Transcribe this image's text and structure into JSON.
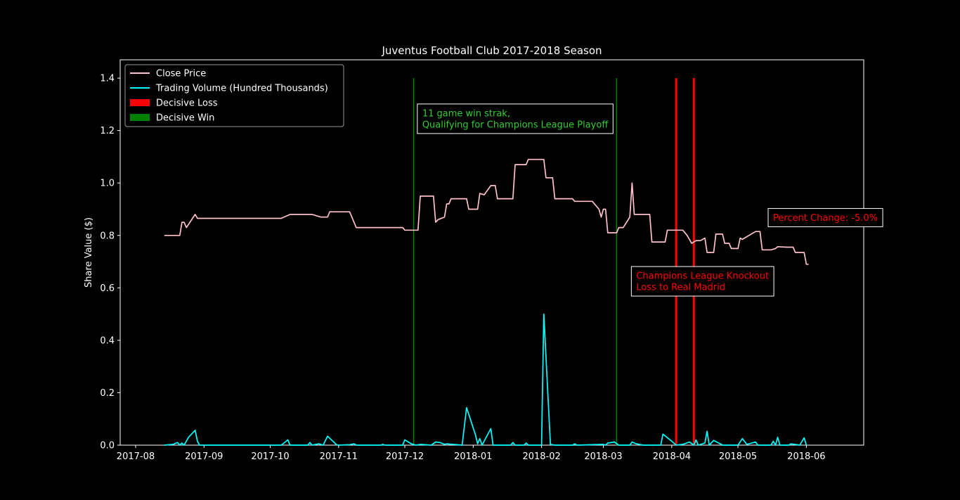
{
  "chart_data": {
    "type": "line",
    "title": "Juventus Football Club 2017-2018 Season",
    "xlabel": "",
    "ylabel": "Share Value ($)",
    "xlim": [
      "2017-07-25",
      "2018-06-27"
    ],
    "ylim": [
      0,
      1.47
    ],
    "x_ticks": [
      "2017-08",
      "2017-09",
      "2017-10",
      "2017-11",
      "2017-12",
      "2018-01",
      "2018-02",
      "2018-03",
      "2018-04",
      "2018-05",
      "2018-06"
    ],
    "y_ticks": [
      "0.0",
      "0.2",
      "0.4",
      "0.6",
      "0.8",
      "1.0",
      "1.2",
      "1.4"
    ],
    "legend_position": "top-left",
    "grid": false,
    "series": [
      {
        "name": "Close Price",
        "color": "#ffc0cb",
        "points": [
          [
            "2017-08-14",
            0.8
          ],
          [
            "2017-08-21",
            0.8
          ],
          [
            "2017-08-22",
            0.85
          ],
          [
            "2017-08-23",
            0.85
          ],
          [
            "2017-08-24",
            0.83
          ],
          [
            "2017-08-28",
            0.88
          ],
          [
            "2017-08-29",
            0.865
          ],
          [
            "2017-10-06",
            0.865
          ],
          [
            "2017-10-10",
            0.88
          ],
          [
            "2017-10-20",
            0.88
          ],
          [
            "2017-10-24",
            0.87
          ],
          [
            "2017-10-27",
            0.87
          ],
          [
            "2017-10-28",
            0.89
          ],
          [
            "2017-11-06",
            0.89
          ],
          [
            "2017-11-09",
            0.83
          ],
          [
            "2017-11-30",
            0.83
          ],
          [
            "2017-12-01",
            0.82
          ],
          [
            "2017-12-07",
            0.82
          ],
          [
            "2017-12-08",
            0.95
          ],
          [
            "2017-12-14",
            0.95
          ],
          [
            "2017-12-15",
            0.85
          ],
          [
            "2017-12-16",
            0.86
          ],
          [
            "2017-12-19",
            0.87
          ],
          [
            "2017-12-20",
            0.92
          ],
          [
            "2017-12-21",
            0.92
          ],
          [
            "2017-12-22",
            0.94
          ],
          [
            "2017-12-29",
            0.94
          ],
          [
            "2017-12-30",
            0.9
          ],
          [
            "2018-01-03",
            0.9
          ],
          [
            "2018-01-04",
            0.96
          ],
          [
            "2018-01-06",
            0.955
          ],
          [
            "2018-01-09",
            0.99
          ],
          [
            "2018-01-11",
            0.99
          ],
          [
            "2018-01-12",
            0.94
          ],
          [
            "2018-01-19",
            0.94
          ],
          [
            "2018-01-20",
            1.07
          ],
          [
            "2018-01-25",
            1.07
          ],
          [
            "2018-01-26",
            1.09
          ],
          [
            "2018-02-02",
            1.09
          ],
          [
            "2018-02-03",
            1.02
          ],
          [
            "2018-02-06",
            1.02
          ],
          [
            "2018-02-07",
            0.94
          ],
          [
            "2018-02-15",
            0.94
          ],
          [
            "2018-02-16",
            0.93
          ],
          [
            "2018-02-24",
            0.93
          ],
          [
            "2018-02-27",
            0.9
          ],
          [
            "2018-02-28",
            0.87
          ],
          [
            "2018-03-01",
            0.9
          ],
          [
            "2018-03-02",
            0.9
          ],
          [
            "2018-03-03",
            0.81
          ],
          [
            "2018-03-07",
            0.81
          ],
          [
            "2018-03-08",
            0.83
          ],
          [
            "2018-03-10",
            0.83
          ],
          [
            "2018-03-13",
            0.87
          ],
          [
            "2018-03-14",
            1.0
          ],
          [
            "2018-03-15",
            0.88
          ],
          [
            "2018-03-22",
            0.88
          ],
          [
            "2018-03-23",
            0.775
          ],
          [
            "2018-03-29",
            0.775
          ],
          [
            "2018-03-30",
            0.82
          ],
          [
            "2018-04-06",
            0.82
          ],
          [
            "2018-04-08",
            0.8
          ],
          [
            "2018-04-10",
            0.77
          ],
          [
            "2018-04-12",
            0.78
          ],
          [
            "2018-04-14",
            0.78
          ],
          [
            "2018-04-16",
            0.79
          ],
          [
            "2018-04-17",
            0.735
          ],
          [
            "2018-04-20",
            0.735
          ],
          [
            "2018-04-21",
            0.805
          ],
          [
            "2018-04-24",
            0.805
          ],
          [
            "2018-04-25",
            0.77
          ],
          [
            "2018-04-27",
            0.77
          ],
          [
            "2018-04-28",
            0.75
          ],
          [
            "2018-05-01",
            0.75
          ],
          [
            "2018-05-02",
            0.79
          ],
          [
            "2018-05-03",
            0.785
          ],
          [
            "2018-05-05",
            0.795
          ],
          [
            "2018-05-09",
            0.815
          ],
          [
            "2018-05-11",
            0.815
          ],
          [
            "2018-05-12",
            0.745
          ],
          [
            "2018-05-16",
            0.745
          ],
          [
            "2018-05-18",
            0.75
          ],
          [
            "2018-05-19",
            0.757
          ],
          [
            "2018-05-23",
            0.755
          ],
          [
            "2018-05-26",
            0.755
          ],
          [
            "2018-05-27",
            0.735
          ],
          [
            "2018-05-31",
            0.735
          ],
          [
            "2018-06-01",
            0.69
          ],
          [
            "2018-06-02",
            0.69
          ]
        ]
      },
      {
        "name": "Trading Volume (Hundred Thousands)",
        "color": "#00ffff",
        "points": [
          [
            "2017-08-14",
            0.0
          ],
          [
            "2017-08-18",
            0.003
          ],
          [
            "2017-08-20",
            0.01
          ],
          [
            "2017-08-21",
            0.0
          ],
          [
            "2017-08-22",
            0.008
          ],
          [
            "2017-08-23",
            0.0
          ],
          [
            "2017-08-25",
            0.03
          ],
          [
            "2017-08-28",
            0.057
          ],
          [
            "2017-08-29",
            0.015
          ],
          [
            "2017-08-30",
            0.0
          ],
          [
            "2017-10-06",
            0.0
          ],
          [
            "2017-10-09",
            0.02
          ],
          [
            "2017-10-10",
            0.0
          ],
          [
            "2017-10-18",
            0.0
          ],
          [
            "2017-10-19",
            0.01
          ],
          [
            "2017-10-20",
            0.0
          ],
          [
            "2017-10-23",
            0.005
          ],
          [
            "2017-10-25",
            0.0
          ],
          [
            "2017-10-27",
            0.034
          ],
          [
            "2017-10-31",
            0.002
          ],
          [
            "2017-11-01",
            0.0
          ],
          [
            "2017-11-06",
            0.002
          ],
          [
            "2017-11-08",
            0.005
          ],
          [
            "2017-11-09",
            0.0
          ],
          [
            "2017-11-20",
            0.0
          ],
          [
            "2017-11-21",
            0.003
          ],
          [
            "2017-11-22",
            0.0
          ],
          [
            "2017-11-30",
            0.0
          ],
          [
            "2017-12-01",
            0.02
          ],
          [
            "2017-12-04",
            0.005
          ],
          [
            "2017-12-06",
            0.0
          ],
          [
            "2017-12-08",
            0.003
          ],
          [
            "2017-12-13",
            0.0
          ],
          [
            "2017-12-15",
            0.012
          ],
          [
            "2017-12-17",
            0.01
          ],
          [
            "2017-12-19",
            0.003
          ],
          [
            "2017-12-20",
            0.005
          ],
          [
            "2017-12-27",
            0.0
          ],
          [
            "2017-12-29",
            0.143
          ],
          [
            "2018-01-02",
            0.04
          ],
          [
            "2018-01-03",
            0.005
          ],
          [
            "2018-01-04",
            0.025
          ],
          [
            "2018-01-05",
            0.0
          ],
          [
            "2018-01-09",
            0.063
          ],
          [
            "2018-01-10",
            0.0
          ],
          [
            "2018-01-18",
            0.0
          ],
          [
            "2018-01-19",
            0.01
          ],
          [
            "2018-01-20",
            0.0
          ],
          [
            "2018-01-24",
            0.0
          ],
          [
            "2018-01-25",
            0.008
          ],
          [
            "2018-01-26",
            0.0
          ],
          [
            "2018-02-01",
            0.0
          ],
          [
            "2018-02-02",
            0.5
          ],
          [
            "2018-02-05",
            0.003
          ],
          [
            "2018-02-07",
            0.0
          ],
          [
            "2018-02-15",
            0.0
          ],
          [
            "2018-02-16",
            0.005
          ],
          [
            "2018-02-17",
            0.0
          ],
          [
            "2018-03-01",
            0.003
          ],
          [
            "2018-03-02",
            0.0
          ],
          [
            "2018-03-03",
            0.008
          ],
          [
            "2018-03-06",
            0.012
          ],
          [
            "2018-03-08",
            0.0
          ],
          [
            "2018-03-13",
            0.0
          ],
          [
            "2018-03-14",
            0.012
          ],
          [
            "2018-03-16",
            0.005
          ],
          [
            "2018-03-19",
            0.0
          ],
          [
            "2018-03-27",
            0.0
          ],
          [
            "2018-03-28",
            0.042
          ],
          [
            "2018-04-01",
            0.015
          ],
          [
            "2018-04-03",
            0.0
          ],
          [
            "2018-04-06",
            0.003
          ],
          [
            "2018-04-09",
            0.012
          ],
          [
            "2018-04-11",
            0.0
          ],
          [
            "2018-04-12",
            0.02
          ],
          [
            "2018-04-13",
            0.0
          ],
          [
            "2018-04-16",
            0.008
          ],
          [
            "2018-04-17",
            0.053
          ],
          [
            "2018-04-18",
            0.0
          ],
          [
            "2018-04-20",
            0.018
          ],
          [
            "2018-04-23",
            0.005
          ],
          [
            "2018-04-24",
            0.0
          ],
          [
            "2018-05-01",
            0.0
          ],
          [
            "2018-05-03",
            0.025
          ],
          [
            "2018-05-05",
            0.003
          ],
          [
            "2018-05-09",
            0.012
          ],
          [
            "2018-05-10",
            0.0
          ],
          [
            "2018-05-16",
            0.0
          ],
          [
            "2018-05-17",
            0.015
          ],
          [
            "2018-05-18",
            0.0
          ],
          [
            "2018-05-19",
            0.03
          ],
          [
            "2018-05-20",
            0.0
          ],
          [
            "2018-05-24",
            0.0
          ],
          [
            "2018-05-25",
            0.005
          ],
          [
            "2018-05-29",
            0.0
          ],
          [
            "2018-05-31",
            0.028
          ],
          [
            "2018-06-01",
            0.0
          ]
        ]
      }
    ],
    "event_lines": [
      {
        "date": "2017-12-05",
        "type": "win",
        "top": 1.4
      },
      {
        "date": "2018-03-07",
        "type": "win",
        "top": 1.4
      },
      {
        "date": "2018-04-03",
        "type": "loss",
        "top": 1.4
      },
      {
        "date": "2018-04-11",
        "type": "loss",
        "top": 1.4
      }
    ],
    "legend": [
      {
        "label": "Close Price",
        "kind": "line",
        "color": "#ffc0cb"
      },
      {
        "label": "Trading Volume (Hundred Thousands)",
        "kind": "line",
        "color": "#00ffff"
      },
      {
        "label": "Decisive Loss",
        "kind": "patch",
        "color": "#ff0000"
      },
      {
        "label": "Decisive Win",
        "kind": "patch",
        "color": "#008000"
      }
    ],
    "annotations": [
      {
        "lines": [
          "11 game win strak,",
          "Qualifying for Champions League Playoff"
        ],
        "color": "#33cc33",
        "date": "2017-12-07",
        "y": 1.245
      },
      {
        "lines": [
          "Champions League Knockout",
          "Loss to Real Madrid"
        ],
        "color": "#ff0000",
        "date": "2018-03-14",
        "y": 0.625
      },
      {
        "lines": [
          "Percent Change: -5.0%"
        ],
        "color": "#ff0000",
        "date": "2018-05-15",
        "y": 0.868
      }
    ],
    "colors": {
      "background": "#000000",
      "axes": "#ffffff",
      "win": "#008000",
      "loss": "#ff0000"
    }
  }
}
